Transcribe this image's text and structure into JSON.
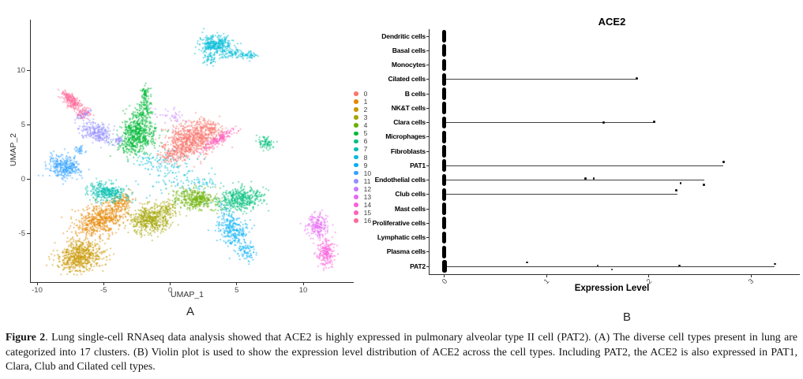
{
  "figure": {
    "panel_a_label": "A",
    "panel_b_label": "B",
    "caption": {
      "label": "Figure 2",
      "text": ". Lung single-cell RNAseq data analysis showed that ACE2 is highly expressed in pulmonary alveolar type II cell (PAT2). (A) The diverse cell types present in lung are categorized into 17 clusters. (B) Violin plot is used to show the expression level distribution of ACE2 across the cell types. Including PAT2, the ACE2 is also expressed in PAT1, Clara, Club and Cilated cell types."
    }
  },
  "chart_data": [
    {
      "type": "scatter",
      "panel": "A",
      "title": "",
      "xlabel": "UMAP_1",
      "ylabel": "UMAP_2",
      "xlim": [
        -10.6,
        13.9
      ],
      "ylim": [
        -9.5,
        14.8
      ],
      "xticks": [
        -10,
        -5,
        0,
        5,
        10
      ],
      "yticks": [
        -5,
        0,
        5,
        10
      ],
      "legend_position": "right",
      "clusters": [
        {
          "id": "0",
          "color": "#F8766D",
          "blobs": [
            [
              1.6,
              3.7,
              1.0,
              0.75,
              20,
              700
            ],
            [
              0.3,
              2.4,
              0.6,
              0.5,
              20,
              150
            ],
            [
              3.0,
              4.8,
              0.45,
              0.35,
              0,
              80
            ]
          ]
        },
        {
          "id": "1",
          "color": "#E58700",
          "blobs": [
            [
              -5.2,
              -3.7,
              1.1,
              0.7,
              35,
              600
            ],
            [
              -3.7,
              -2.0,
              0.5,
              0.35,
              35,
              100
            ]
          ]
        },
        {
          "id": "2",
          "color": "#C99800",
          "blobs": [
            [
              -6.8,
              -7.1,
              0.85,
              0.65,
              25,
              620
            ]
          ]
        },
        {
          "id": "3",
          "color": "#A3A500",
          "blobs": [
            [
              -1.5,
              -3.7,
              0.8,
              0.6,
              0,
              480
            ],
            [
              -0.2,
              -2.6,
              0.4,
              0.35,
              0,
              80
            ]
          ]
        },
        {
          "id": "4",
          "color": "#6BB100",
          "blobs": [
            [
              1.9,
              -1.8,
              0.8,
              0.5,
              -10,
              380
            ]
          ]
        },
        {
          "id": "5",
          "color": "#00BA38",
          "blobs": [
            [
              -2.4,
              4.3,
              0.65,
              0.8,
              0,
              550
            ],
            [
              -2.0,
              6.3,
              0.35,
              0.55,
              0,
              110
            ],
            [
              -1.85,
              7.9,
              0.18,
              0.4,
              0,
              60
            ],
            [
              -3.1,
              2.9,
              0.45,
              0.35,
              0,
              80
            ]
          ]
        },
        {
          "id": "6",
          "color": "#00BF7D",
          "blobs": [
            [
              5.3,
              -1.8,
              0.85,
              0.55,
              15,
              420
            ],
            [
              7.2,
              3.4,
              0.3,
              0.28,
              0,
              80
            ]
          ]
        },
        {
          "id": "7",
          "color": "#00C0AF",
          "blobs": [
            [
              -4.7,
              -1.2,
              0.75,
              0.45,
              -10,
              330
            ]
          ]
        },
        {
          "id": "8",
          "color": "#00BCD8",
          "blobs": [
            [
              3.5,
              12.4,
              0.65,
              0.45,
              0,
              330
            ],
            [
              4.9,
              11.5,
              0.5,
              0.22,
              0,
              90
            ],
            [
              3.0,
              11.0,
              0.25,
              0.35,
              0,
              50
            ],
            [
              6.1,
              11.4,
              0.25,
              0.15,
              0,
              30
            ],
            [
              0.4,
              0.6,
              1.3,
              0.9,
              0,
              110
            ],
            [
              -1.4,
              1.8,
              0.6,
              0.4,
              0,
              50
            ],
            [
              2.5,
              -0.3,
              0.7,
              0.3,
              0,
              40
            ]
          ]
        },
        {
          "id": "9",
          "color": "#00B0F6",
          "blobs": [
            [
              4.7,
              -4.7,
              0.5,
              1.0,
              20,
              300
            ],
            [
              5.8,
              -6.8,
              0.3,
              0.4,
              0,
              60
            ]
          ]
        },
        {
          "id": "10",
          "color": "#35A2FF",
          "blobs": [
            [
              -8.0,
              1.2,
              0.6,
              0.5,
              -15,
              330
            ],
            [
              -6.8,
              2.7,
              0.25,
              0.18,
              -30,
              30
            ]
          ]
        },
        {
          "id": "11",
          "color": "#9590FF",
          "blobs": [
            [
              -5.5,
              4.3,
              0.7,
              0.4,
              -28,
              260
            ],
            [
              -6.5,
              5.9,
              0.18,
              0.35,
              -50,
              50
            ],
            [
              -3.9,
              3.6,
              0.2,
              0.15,
              0,
              30
            ]
          ]
        },
        {
          "id": "12",
          "color": "#C77CFF",
          "blobs": [
            [
              0.0,
              5.8,
              0.7,
              0.4,
              0,
              35
            ]
          ]
        },
        {
          "id": "13",
          "color": "#E76BF3",
          "blobs": [
            [
              11.1,
              -4.2,
              0.4,
              0.6,
              0,
              200
            ]
          ]
        },
        {
          "id": "14",
          "color": "#FA62DB",
          "blobs": [
            [
              11.7,
              -6.7,
              0.35,
              0.65,
              0,
              200
            ]
          ]
        },
        {
          "id": "15",
          "color": "#FF62BC",
          "blobs": [
            [
              3.6,
              3.7,
              0.65,
              0.2,
              40,
              170
            ]
          ]
        },
        {
          "id": "16",
          "color": "#FF6A98",
          "blobs": [
            [
              -7.4,
              7.2,
              0.55,
              0.22,
              -55,
              200
            ],
            [
              -6.5,
              6.1,
              0.25,
              0.3,
              -45,
              50
            ]
          ]
        }
      ]
    },
    {
      "type": "violin",
      "panel": "B",
      "title": "ACE2",
      "xlabel": "Expression Level",
      "xticks": [
        0,
        1,
        2,
        3
      ],
      "xlim": [
        -0.15,
        3.47
      ],
      "zero_bar_color": "#000000",
      "rows": [
        {
          "label": "Dendritic cells",
          "max": 0,
          "points": []
        },
        {
          "label": "Basal cells",
          "max": 0,
          "points": []
        },
        {
          "label": "Monocytes",
          "max": 0,
          "points": []
        },
        {
          "label": "Cilated cells",
          "max": 1.88,
          "points": [
            [
              1.88,
              -1
            ]
          ]
        },
        {
          "label": "B cells",
          "max": 0,
          "points": []
        },
        {
          "label": "NK&T cells",
          "max": 0,
          "points": []
        },
        {
          "label": "Clara cells",
          "max": 2.06,
          "points": [
            [
              1.56,
              0
            ],
            [
              2.05,
              -1
            ]
          ]
        },
        {
          "label": "Microphages",
          "max": 0,
          "points": []
        },
        {
          "label": "Fibroblasts",
          "max": 0,
          "points": []
        },
        {
          "label": "PAT1",
          "max": 2.73,
          "points": [
            [
              2.73,
              -5
            ]
          ]
        },
        {
          "label": "Endothelial cells",
          "max": 2.54,
          "points": [
            [
              1.38,
              -2
            ],
            [
              1.46,
              -2
            ],
            [
              2.31,
              4
            ],
            [
              2.54,
              6
            ]
          ]
        },
        {
          "label": "Club cells",
          "max": 2.28,
          "points": [
            [
              2.27,
              -5
            ]
          ]
        },
        {
          "label": "Mast cells",
          "max": 0,
          "points": []
        },
        {
          "label": "Proliferative cells",
          "max": 0,
          "points": []
        },
        {
          "label": "Lymphatic cells",
          "max": 0,
          "points": []
        },
        {
          "label": "Plasma cells",
          "max": 0,
          "points": []
        },
        {
          "label": "PAT2",
          "max": 3.23,
          "points": [
            [
              0.81,
              -5
            ],
            [
              1.5,
              -1
            ],
            [
              1.64,
              4
            ],
            [
              2.3,
              -1
            ],
            [
              3.23,
              -3
            ]
          ]
        }
      ]
    }
  ]
}
